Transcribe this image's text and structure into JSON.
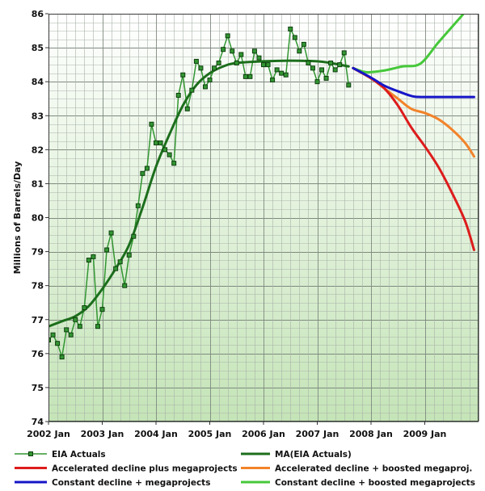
{
  "chart_data": {
    "type": "line",
    "ylabel": "Millions of Barrels/Day",
    "ylim": [
      74,
      86
    ],
    "xlim": [
      "2002-01",
      "2010-01"
    ],
    "yticks": [
      74,
      75,
      76,
      77,
      78,
      79,
      80,
      81,
      82,
      83,
      84,
      85,
      86
    ],
    "xticks": [
      {
        "label": "2002 Jan",
        "x": "2002-01"
      },
      {
        "label": "2003 Jan",
        "x": "2003-01"
      },
      {
        "label": "2004 Jan",
        "x": "2004-01"
      },
      {
        "label": "2005 Jan",
        "x": "2005-01"
      },
      {
        "label": "2006 Jan",
        "x": "2006-01"
      },
      {
        "label": "2007 Jan",
        "x": "2007-01"
      },
      {
        "label": "2008 Jan",
        "x": "2008-01"
      },
      {
        "label": "2009 Jan",
        "x": "2009-01"
      }
    ],
    "grid": true,
    "legend_position": "bottom",
    "background": [
      "#ffffff",
      "#c4e4b7"
    ],
    "series": [
      {
        "name": "EIA Actuals",
        "color": "#329632",
        "marker": "square",
        "start": "2002-01",
        "step": "month",
        "values": [
          76.4,
          76.55,
          76.3,
          75.9,
          76.7,
          76.55,
          77.0,
          76.8,
          77.35,
          78.75,
          78.85,
          76.8,
          77.3,
          79.05,
          79.55,
          78.5,
          78.7,
          78.0,
          78.9,
          79.45,
          80.35,
          81.3,
          81.45,
          82.75,
          82.2,
          82.2,
          82.0,
          81.85,
          81.6,
          83.6,
          84.2,
          83.2,
          83.75,
          84.6,
          84.4,
          83.85,
          84.05,
          84.4,
          84.55,
          84.95,
          85.35,
          84.9,
          84.55,
          84.8,
          84.15,
          84.15,
          84.9,
          84.7,
          84.5,
          84.5,
          84.05,
          84.35,
          84.25,
          84.2,
          85.55,
          85.3,
          84.9,
          85.1,
          84.55,
          84.4,
          84.0,
          84.35,
          84.1,
          84.55,
          84.35,
          84.5,
          84.85,
          83.9
        ]
      },
      {
        "name": "MA(EIA Actuals)",
        "color": "#1c6e1c",
        "points": [
          [
            "2002-01",
            76.8
          ],
          [
            "2002-04",
            76.95
          ],
          [
            "2002-07",
            77.1
          ],
          [
            "2002-10",
            77.4
          ],
          [
            "2003-01",
            77.9
          ],
          [
            "2003-04",
            78.5
          ],
          [
            "2003-07",
            79.2
          ],
          [
            "2003-10",
            80.3
          ],
          [
            "2004-01",
            81.5
          ],
          [
            "2004-04",
            82.45
          ],
          [
            "2004-07",
            83.3
          ],
          [
            "2004-10",
            83.9
          ],
          [
            "2005-01",
            84.25
          ],
          [
            "2005-04",
            84.45
          ],
          [
            "2005-07",
            84.55
          ],
          [
            "2006-01",
            84.6
          ],
          [
            "2006-07",
            84.62
          ],
          [
            "2007-01",
            84.6
          ],
          [
            "2007-04",
            84.55
          ],
          [
            "2007-08",
            84.45
          ]
        ]
      },
      {
        "name": "Accelerated decline plus megaprojects",
        "color": "#dd1c1c",
        "points": [
          [
            "2007-09",
            84.4
          ],
          [
            "2008-01",
            84.1
          ],
          [
            "2008-04",
            83.8
          ],
          [
            "2008-07",
            83.3
          ],
          [
            "2008-10",
            82.65
          ],
          [
            "2009-01",
            82.1
          ],
          [
            "2009-04",
            81.5
          ],
          [
            "2009-07",
            80.75
          ],
          [
            "2009-10",
            79.9
          ],
          [
            "2009-12",
            79.05
          ]
        ]
      },
      {
        "name": "Accelerated decline + boosted megaproj.",
        "color": "#f2832a",
        "points": [
          [
            "2007-09",
            84.4
          ],
          [
            "2008-01",
            84.1
          ],
          [
            "2008-04",
            83.8
          ],
          [
            "2008-07",
            83.5
          ],
          [
            "2008-10",
            83.2
          ],
          [
            "2009-01",
            83.08
          ],
          [
            "2009-04",
            82.9
          ],
          [
            "2009-07",
            82.6
          ],
          [
            "2009-10",
            82.2
          ],
          [
            "2009-12",
            81.8
          ]
        ]
      },
      {
        "name": "Constant decline + megaprojects",
        "color": "#1515c8",
        "points": [
          [
            "2007-09",
            84.4
          ],
          [
            "2008-01",
            84.12
          ],
          [
            "2008-04",
            83.88
          ],
          [
            "2008-07",
            83.72
          ],
          [
            "2008-10",
            83.58
          ],
          [
            "2008-12",
            83.55
          ],
          [
            "2009-06",
            83.55
          ],
          [
            "2009-12",
            83.55
          ]
        ]
      },
      {
        "name": "Constant decline + boosted megaprojects",
        "color": "#46c83a",
        "points": [
          [
            "2007-09",
            84.4
          ],
          [
            "2007-12",
            84.28
          ],
          [
            "2008-04",
            84.33
          ],
          [
            "2008-08",
            84.45
          ],
          [
            "2008-12",
            84.53
          ],
          [
            "2009-04",
            85.15
          ],
          [
            "2009-08",
            85.75
          ],
          [
            "2009-12",
            86.35
          ]
        ]
      }
    ]
  }
}
